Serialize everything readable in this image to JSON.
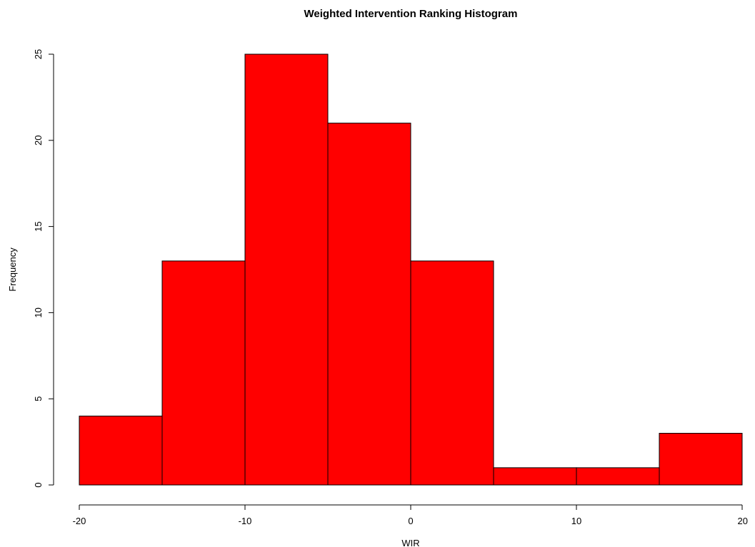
{
  "chart_data": {
    "type": "bar",
    "title": "Weighted Intervention Ranking Histogram",
    "xlabel": "WIR",
    "ylabel": "Frequency",
    "bins": [
      {
        "x0": -20,
        "x1": -15,
        "count": 4
      },
      {
        "x0": -15,
        "x1": -10,
        "count": 13
      },
      {
        "x0": -10,
        "x1": -5,
        "count": 25
      },
      {
        "x0": -5,
        "x1": 0,
        "count": 21
      },
      {
        "x0": 0,
        "x1": 5,
        "count": 13
      },
      {
        "x0": 5,
        "x1": 10,
        "count": 1
      },
      {
        "x0": 10,
        "x1": 15,
        "count": 1
      },
      {
        "x0": 15,
        "x1": 20,
        "count": 3
      }
    ],
    "xlim": [
      -20,
      20
    ],
    "ylim": [
      0,
      25
    ],
    "x_ticks": [
      -20,
      -10,
      0,
      10,
      20
    ],
    "x_tick_labels": [
      "-20",
      "-10",
      "0",
      "10",
      "20"
    ],
    "y_ticks": [
      0,
      5,
      10,
      15,
      20,
      25
    ],
    "y_tick_labels": [
      "0",
      "5",
      "10",
      "15",
      "20",
      "25"
    ],
    "bar_color": "#ff0000",
    "bar_edge_color": "#000000",
    "grid": false
  }
}
